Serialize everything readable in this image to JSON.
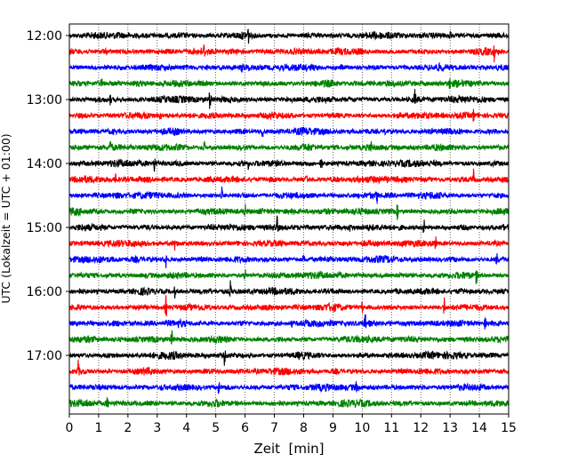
{
  "chart_data": {
    "type": "line",
    "title": "",
    "xlabel": "Zeit  [min]",
    "ylabel": "UTC (Lokalzeit = UTC + 01:00)",
    "xlim": [
      0,
      15
    ],
    "x_ticks": [
      "0",
      "1",
      "2",
      "3",
      "4",
      "5",
      "6",
      "7",
      "8",
      "9",
      "10",
      "11",
      "12",
      "13",
      "14",
      "15"
    ],
    "y_ticks": [
      "12:00",
      "13:00",
      "14:00",
      "15:00",
      "16:00",
      "17:00"
    ],
    "grid": "vertical dotted lines at each minute",
    "trace_interval_minutes": 15,
    "traces": [
      {
        "start": "12:00",
        "color": "#000000",
        "events": [
          [
            6.1,
            1.4
          ],
          [
            13.0,
            0.9
          ]
        ]
      },
      {
        "start": "12:15",
        "color": "#ff0000",
        "events": [
          [
            4.6,
            1.0
          ],
          [
            14.5,
            1.4
          ]
        ]
      },
      {
        "start": "12:30",
        "color": "#0000ff",
        "events": [
          [
            9.3,
            1.0
          ],
          [
            5.9,
            0.8
          ]
        ]
      },
      {
        "start": "12:45",
        "color": "#008000",
        "events": [
          [
            13.0,
            1.3
          ],
          [
            1.1,
            0.7
          ]
        ]
      },
      {
        "start": "13:00",
        "color": "#000000",
        "events": [
          [
            4.8,
            1.6
          ],
          [
            11.8,
            1.4
          ],
          [
            1.4,
            0.8
          ]
        ]
      },
      {
        "start": "13:15",
        "color": "#ff0000",
        "events": [
          [
            13.8,
            1.1
          ],
          [
            3.1,
            0.9
          ]
        ]
      },
      {
        "start": "13:30",
        "color": "#0000ff",
        "events": [
          [
            6.6,
            1.3
          ],
          [
            10.8,
            0.8
          ]
        ]
      },
      {
        "start": "13:45",
        "color": "#008000",
        "events": [
          [
            4.6,
            1.1
          ],
          [
            1.4,
            1.0
          ],
          [
            10.3,
            0.8
          ]
        ]
      },
      {
        "start": "14:00",
        "color": "#000000",
        "events": [
          [
            8.6,
            1.6
          ],
          [
            2.9,
            1.2
          ],
          [
            6.1,
            0.7
          ]
        ]
      },
      {
        "start": "14:15",
        "color": "#ff0000",
        "events": [
          [
            1.6,
            1.2
          ],
          [
            13.8,
            1.4
          ],
          [
            8.1,
            0.8
          ]
        ]
      },
      {
        "start": "14:30",
        "color": "#0000ff",
        "events": [
          [
            5.2,
            1.3
          ],
          [
            10.5,
            1.2
          ]
        ]
      },
      {
        "start": "14:45",
        "color": "#008000",
        "events": [
          [
            6.0,
            1.3
          ],
          [
            11.2,
            1.1
          ],
          [
            1.0,
            0.8
          ]
        ]
      },
      {
        "start": "15:00",
        "color": "#000000",
        "events": [
          [
            7.1,
            1.6
          ],
          [
            9.6,
            1.0
          ],
          [
            12.1,
            1.6
          ]
        ]
      },
      {
        "start": "15:15",
        "color": "#ff0000",
        "events": [
          [
            12.5,
            1.0
          ],
          [
            3.6,
            0.7
          ]
        ]
      },
      {
        "start": "15:30",
        "color": "#0000ff",
        "events": [
          [
            3.3,
            1.3
          ],
          [
            14.6,
            1.5
          ],
          [
            8.0,
            0.7
          ]
        ]
      },
      {
        "start": "15:45",
        "color": "#008000",
        "events": [
          [
            13.9,
            1.3
          ],
          [
            6.0,
            0.8
          ]
        ]
      },
      {
        "start": "16:00",
        "color": "#000000",
        "events": [
          [
            5.5,
            1.4
          ],
          [
            3.6,
            0.8
          ]
        ]
      },
      {
        "start": "16:15",
        "color": "#ff0000",
        "events": [
          [
            3.3,
            1.6
          ],
          [
            12.8,
            1.6
          ],
          [
            10.0,
            0.7
          ]
        ]
      },
      {
        "start": "16:30",
        "color": "#0000ff",
        "events": [
          [
            10.1,
            1.4
          ],
          [
            14.2,
            1.0
          ],
          [
            7.6,
            0.6
          ]
        ]
      },
      {
        "start": "16:45",
        "color": "#008000",
        "events": [
          [
            3.5,
            1.5
          ]
        ]
      },
      {
        "start": "17:00",
        "color": "#000000",
        "events": [
          [
            5.3,
            1.4
          ],
          [
            12.4,
            0.6
          ]
        ]
      },
      {
        "start": "17:15",
        "color": "#ff0000",
        "events": [
          [
            0.3,
            1.6
          ]
        ]
      },
      {
        "start": "17:30",
        "color": "#0000ff",
        "events": [
          [
            5.1,
            1.4
          ],
          [
            9.8,
            0.6
          ]
        ]
      },
      {
        "start": "17:45",
        "color": "#008000",
        "events": [
          [
            1.3,
            1.0
          ]
        ]
      }
    ]
  }
}
